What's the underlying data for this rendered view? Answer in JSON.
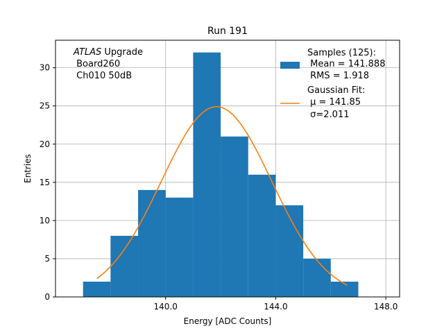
{
  "chart_data": {
    "type": "bar",
    "title": "Run 191",
    "xlabel": "Energy [ADC Counts]",
    "ylabel": "Entries",
    "xlim": [
      136.0,
      148.5
    ],
    "ylim": [
      0,
      33.6
    ],
    "grid": true,
    "bins": [
      {
        "x0": 137.0,
        "x1": 138.0,
        "count": 2
      },
      {
        "x0": 138.0,
        "x1": 139.0,
        "count": 8
      },
      {
        "x0": 139.0,
        "x1": 140.0,
        "count": 14
      },
      {
        "x0": 140.0,
        "x1": 141.0,
        "count": 13
      },
      {
        "x0": 141.0,
        "x1": 142.0,
        "count": 32
      },
      {
        "x0": 142.0,
        "x1": 143.0,
        "count": 21
      },
      {
        "x0": 143.0,
        "x1": 144.0,
        "count": 16
      },
      {
        "x0": 144.0,
        "x1": 145.0,
        "count": 12
      },
      {
        "x0": 145.0,
        "x1": 146.0,
        "count": 5
      },
      {
        "x0": 146.0,
        "x1": 147.0,
        "count": 2
      }
    ],
    "fit": {
      "type": "gaussian",
      "amplitude": 24.9,
      "mu": 141.85,
      "sigma": 2.011,
      "x_range": [
        137.5,
        146.6
      ]
    },
    "xticks": [
      140.0,
      144.0,
      148.0
    ],
    "xtick_labels": [
      "140.0",
      "144.0",
      "148.0"
    ],
    "yticks": [
      0,
      5,
      10,
      15,
      20,
      25,
      30
    ],
    "ytick_labels": [
      "0",
      "5",
      "10",
      "15",
      "20",
      "25",
      "30"
    ],
    "colors": {
      "bars": "#1f77b4",
      "fit": "#ff7f0e",
      "grid": "#b0b0b0"
    },
    "annotation": {
      "italic": "ATLAS",
      "line1_rest": " Upgrade",
      "line2": " Board260",
      "line3": " Ch010 50dB"
    },
    "legend": {
      "placement": "top-right",
      "samples_line1": "Samples (125):",
      "samples_line2": " Mean = 141.888",
      "samples_line3": " RMS = 1.918",
      "fit_line1": "Gaussian Fit:",
      "fit_line2": " μ = 141.85",
      "fit_line3": " σ=2.011"
    }
  }
}
